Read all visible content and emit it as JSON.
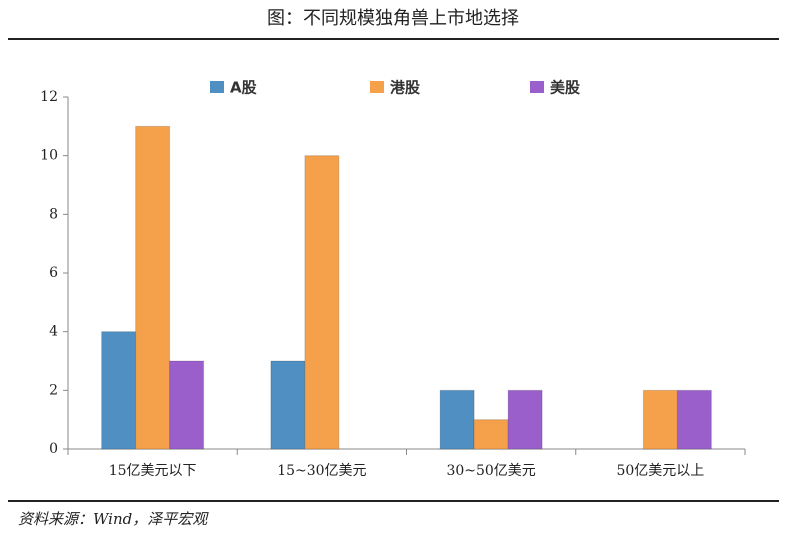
{
  "chart_data": {
    "type": "bar",
    "title": "图：不同规模独角兽上市地选择",
    "source": "资料来源：Wind，泽平宏观",
    "categories": [
      "15亿美元以下",
      "15~30亿美元",
      "30~50亿美元",
      "50亿美元以上"
    ],
    "series": [
      {
        "name": "A股",
        "color": "#4f8fc2",
        "values": [
          4,
          3,
          2,
          0
        ]
      },
      {
        "name": "港股",
        "color": "#f5a04a",
        "values": [
          11,
          10,
          1,
          2
        ]
      },
      {
        "name": "美股",
        "color": "#9a5fcb",
        "values": [
          3,
          0,
          2,
          2
        ]
      }
    ],
    "ylim": [
      0,
      12
    ],
    "yticks": [
      0,
      2,
      4,
      6,
      8,
      10,
      12
    ],
    "legend": "top"
  }
}
